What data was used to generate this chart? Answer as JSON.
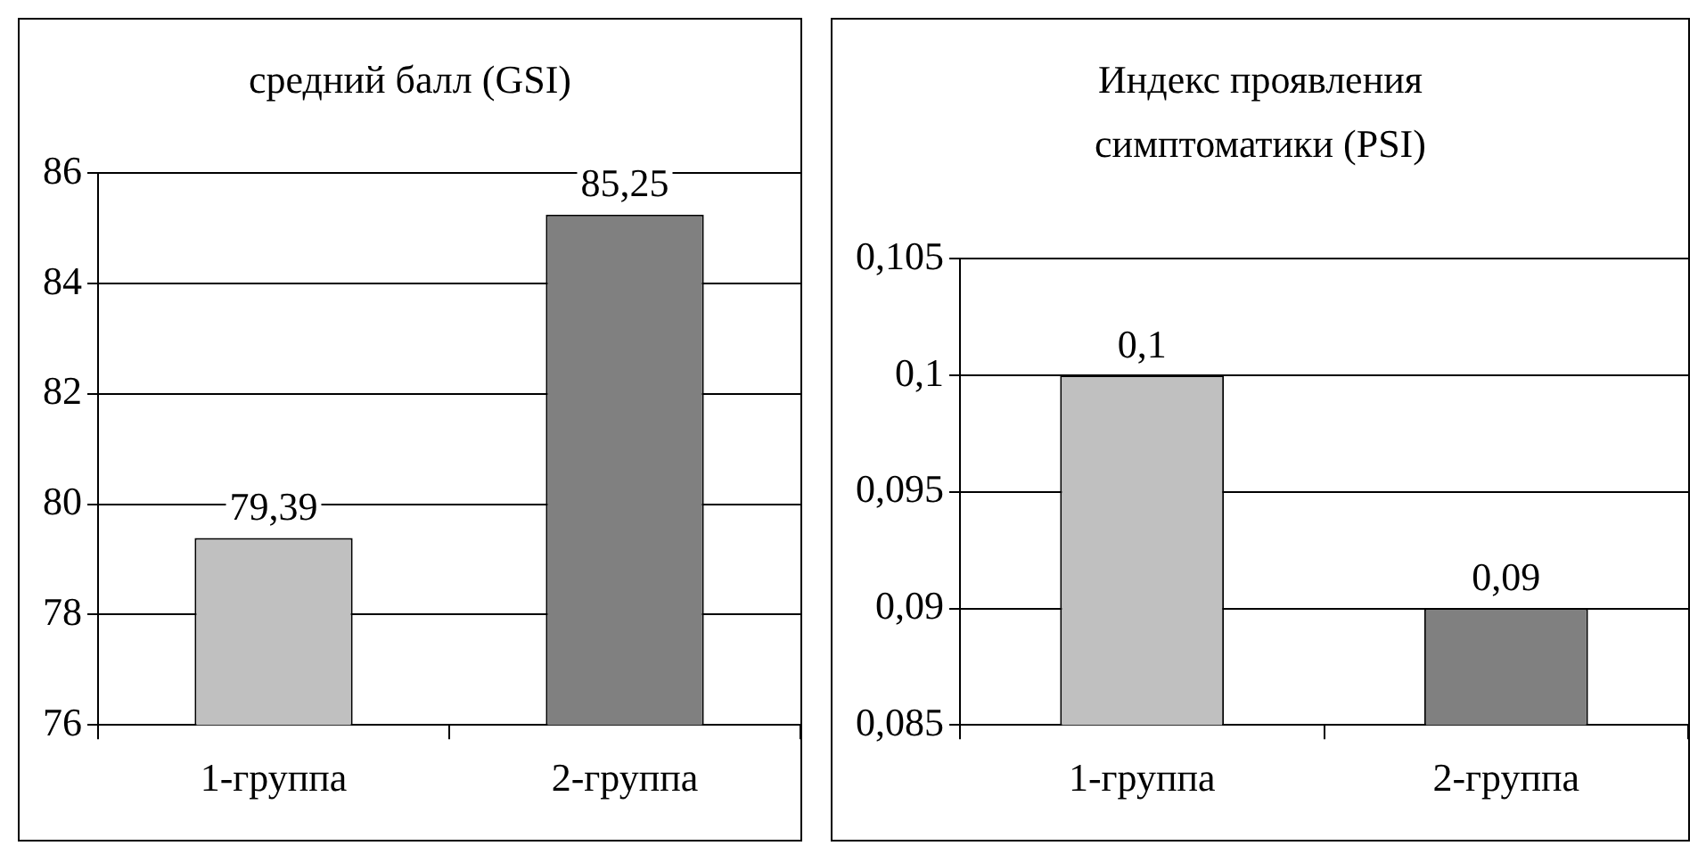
{
  "chart_data": [
    {
      "type": "bar",
      "title": "средний балл (GSI)",
      "categories": [
        "1-группа",
        "2-группа"
      ],
      "values": [
        79.39,
        85.25
      ],
      "value_labels": [
        "79,39",
        "85,25"
      ],
      "colors": [
        "#c0c0c0",
        "#808080"
      ],
      "ylim": [
        76,
        86
      ],
      "yticks": [
        76,
        78,
        80,
        82,
        84,
        86
      ],
      "grid": "y",
      "legend": false
    },
    {
      "type": "bar",
      "title": "Индекс проявления симптоматики (PSI)",
      "categories": [
        "1-группа",
        "2-группа"
      ],
      "values": [
        0.1,
        0.09
      ],
      "value_labels": [
        "0,1",
        "0,09"
      ],
      "colors": [
        "#c0c0c0",
        "#808080"
      ],
      "ylim": [
        0.085,
        0.105
      ],
      "yticks": [
        {
          "value": 0.085,
          "label": "0,085"
        },
        {
          "value": 0.09,
          "label": "0,09"
        },
        {
          "value": 0.095,
          "label": "0,095"
        },
        {
          "value": 0.1,
          "label": "0,1"
        },
        {
          "value": 0.105,
          "label": "0,105"
        }
      ],
      "grid": "y",
      "legend": false
    }
  ]
}
